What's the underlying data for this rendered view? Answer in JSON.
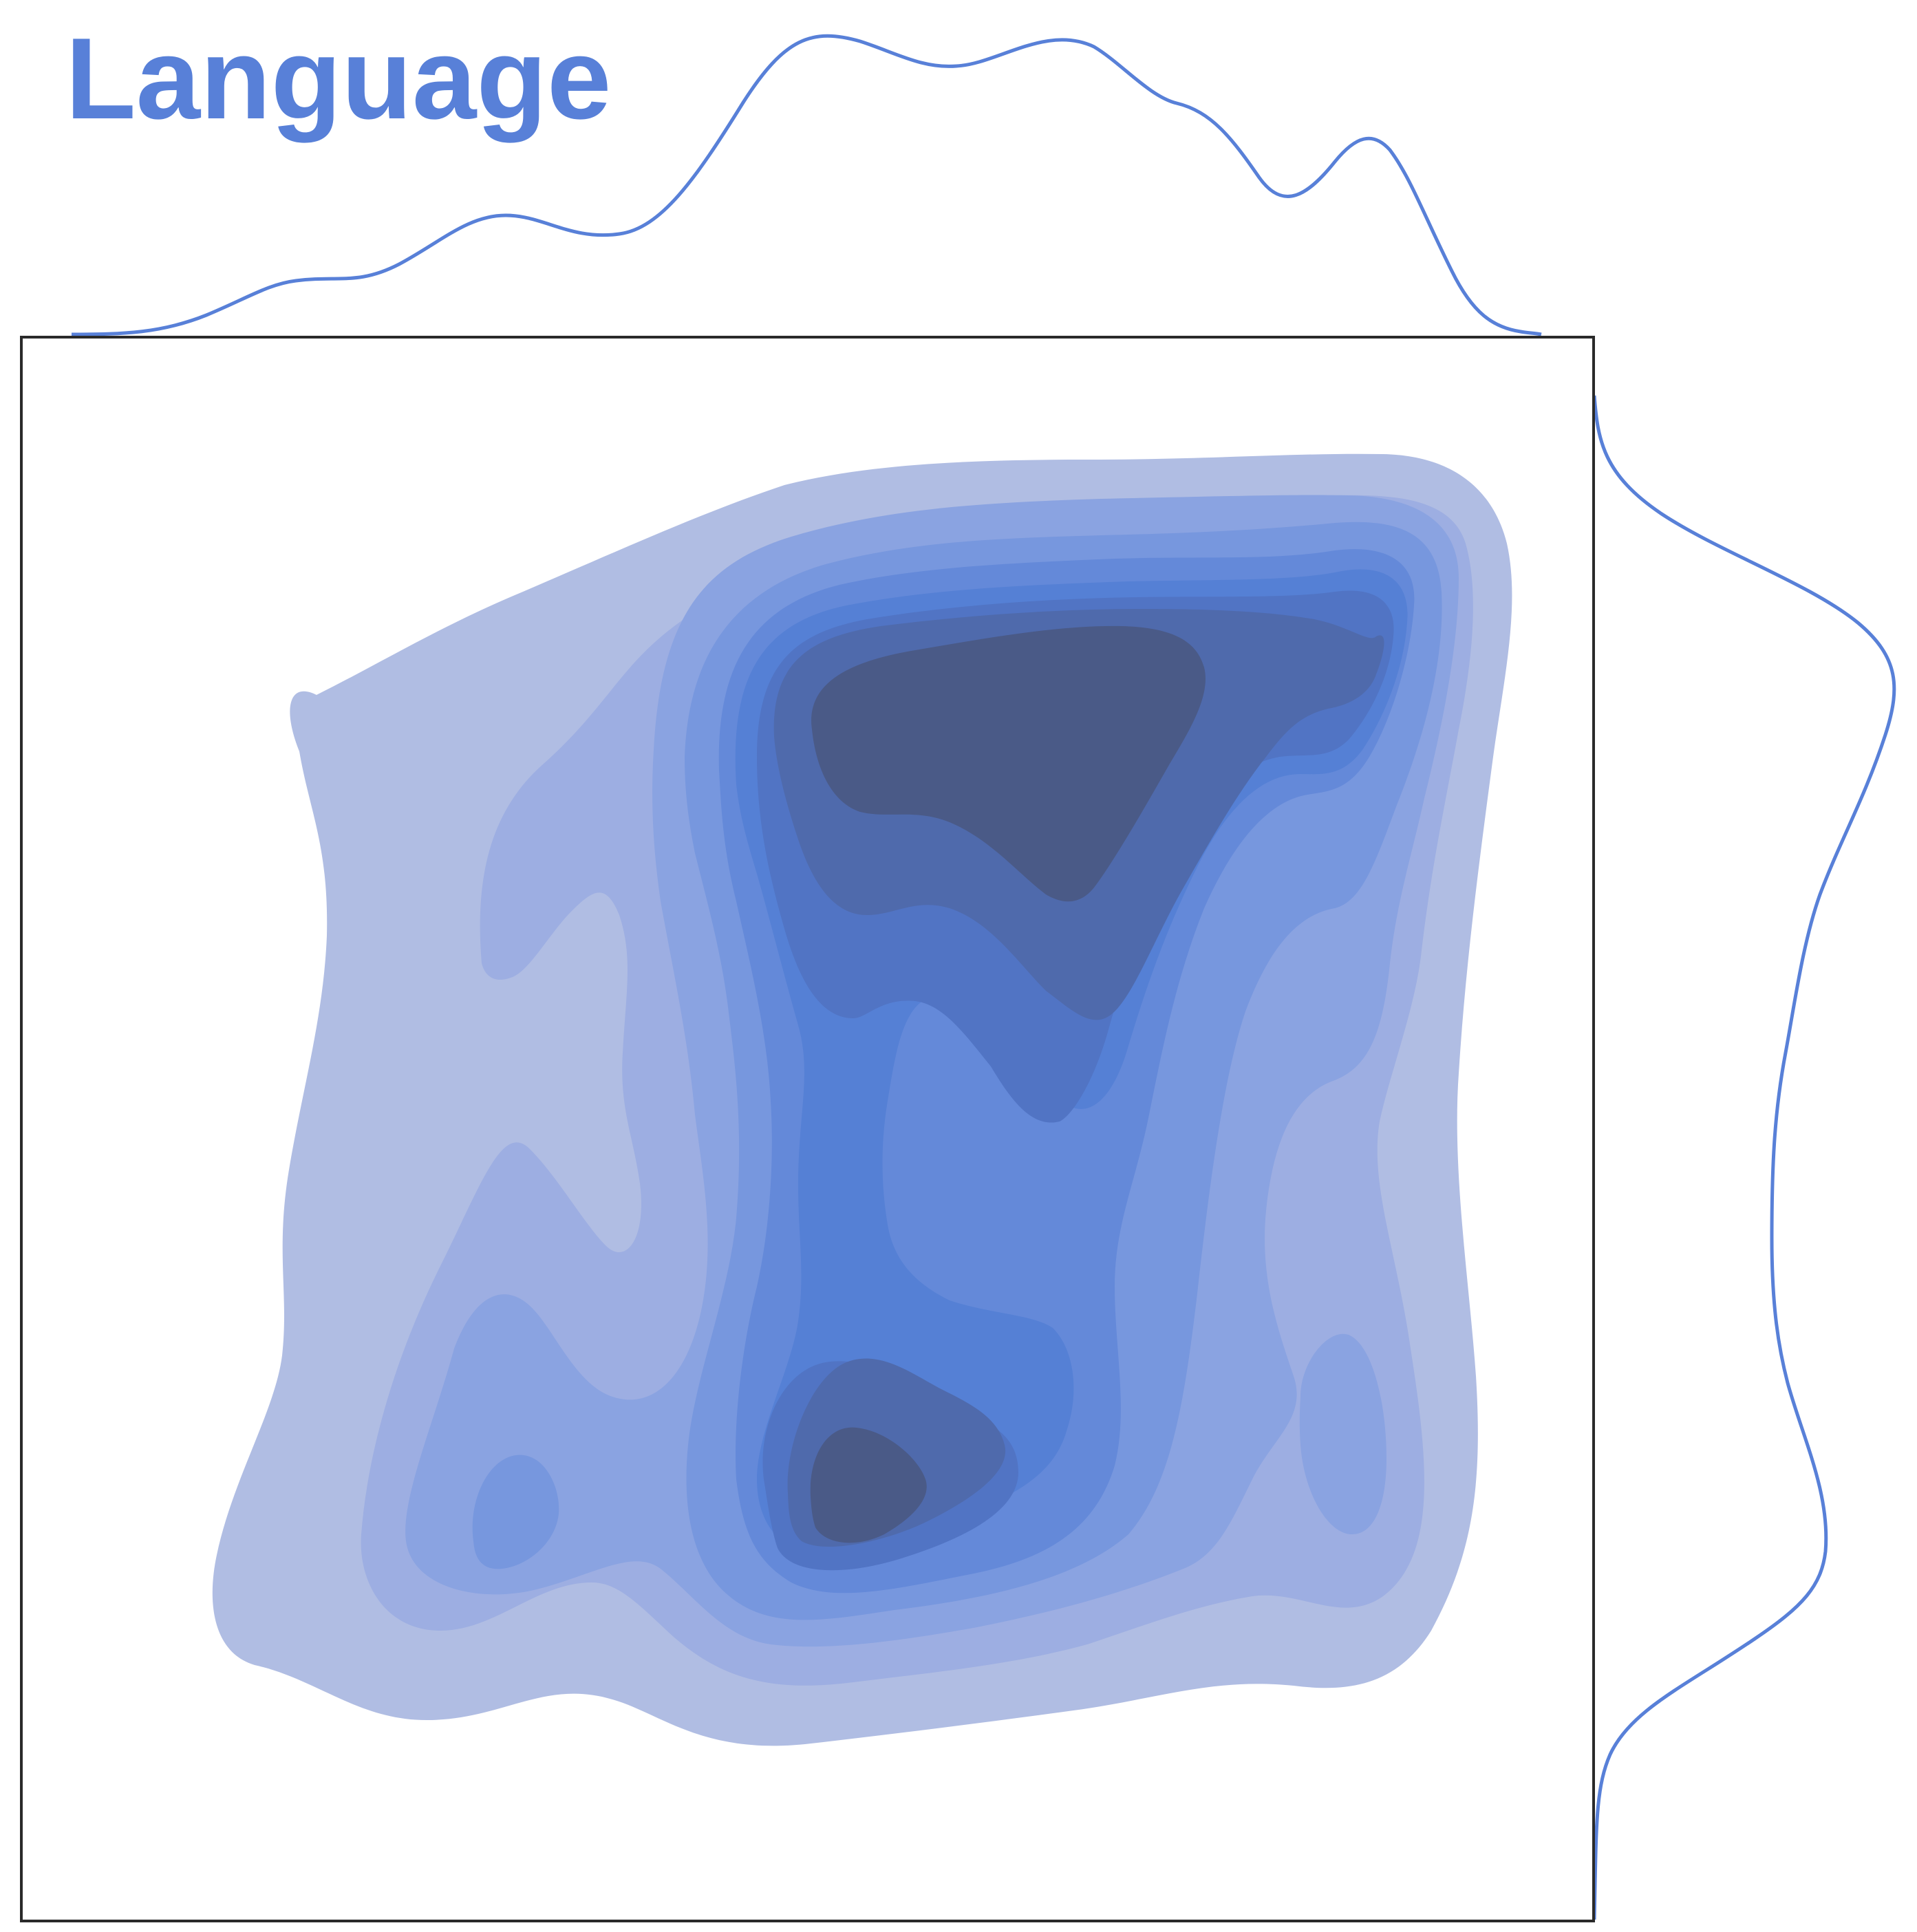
{
  "chart_data": {
    "type": "kde-contour-joint",
    "title": "Language",
    "xlabel": "",
    "ylabel": "",
    "grid": false,
    "legend": false,
    "colors": {
      "line": "#5880d8",
      "frame": "#2a2a2a",
      "title": "#5880d8",
      "levels": [
        "#b0bde3",
        "#9daee2",
        "#8aa3e1",
        "#7797de",
        "#6489d9",
        "#5580d5",
        "#5174c4",
        "#4f6aac",
        "#4a5a87"
      ]
    },
    "density_levels": [
      1,
      2,
      3,
      4,
      5,
      6,
      7,
      8,
      9
    ],
    "x_marginal_density": [
      0.0,
      0.03,
      0.16,
      0.19,
      0.37,
      0.34,
      0.8,
      0.9,
      0.84,
      0.88,
      0.7,
      0.44,
      0.61,
      0.0
    ],
    "y_marginal_density": [
      0.95,
      0.86,
      0.72,
      0.48,
      0.42,
      0.45,
      0.63,
      0.22,
      0.05,
      0.0
    ]
  }
}
